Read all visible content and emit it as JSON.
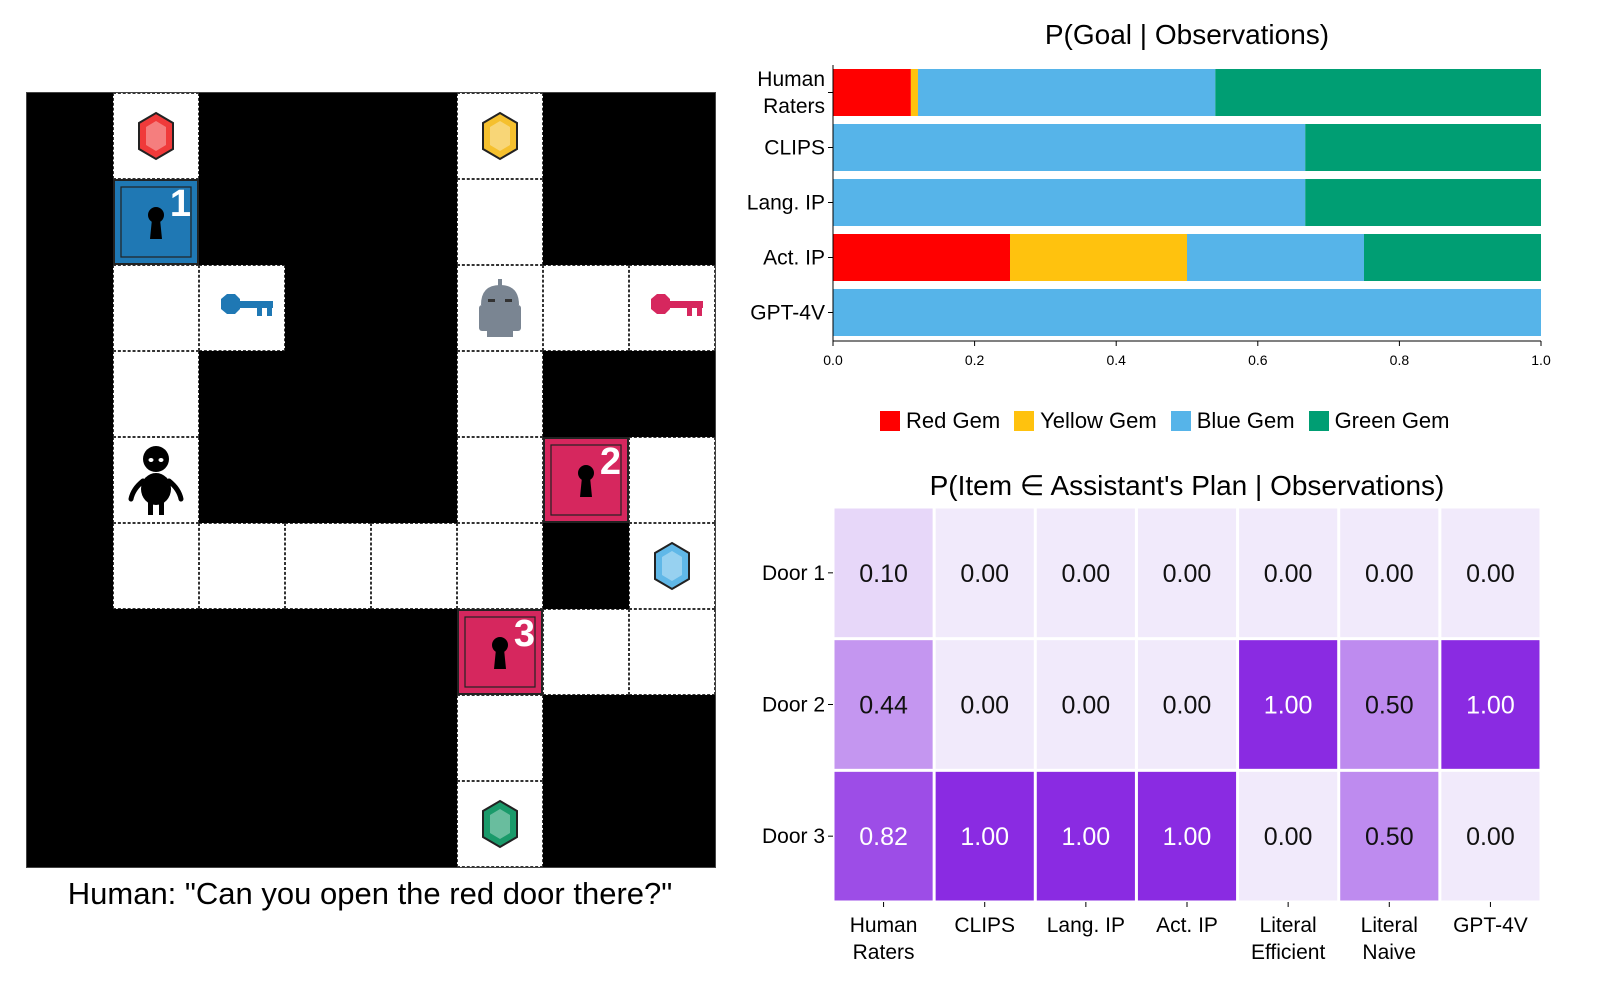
{
  "gridworld": {
    "caption": "Human: \"Can you open the red door there?\"",
    "door_labels": {
      "door1": "1",
      "door2": "2",
      "door3": "3"
    },
    "items": [
      {
        "name": "red-gem-icon",
        "label": "red gem"
      },
      {
        "name": "yellow-gem-icon",
        "label": "yellow gem"
      },
      {
        "name": "blue-gem-icon",
        "label": "blue gem"
      },
      {
        "name": "green-gem-icon",
        "label": "green gem"
      },
      {
        "name": "blue-key-icon",
        "label": "blue key"
      },
      {
        "name": "red-key-icon",
        "label": "red key"
      },
      {
        "name": "robot-icon",
        "label": "assistant"
      },
      {
        "name": "human-icon",
        "label": "human"
      }
    ],
    "colors": {
      "blue_door": "#1f78b4",
      "red_door": "#d6275e",
      "red_gem": "#f03a3a",
      "yellow_gem": "#f5c02e",
      "blue_gem": "#60b8e8",
      "green_gem": "#1a9a6a",
      "blue_key": "#1f78b4",
      "red_key": "#d6275e",
      "robot": "#7a8592"
    }
  },
  "chart_data": [
    {
      "type": "bar",
      "orientation": "horizontal",
      "stacked": true,
      "title": "P(Goal | Observations)",
      "categories": [
        "Human\nRaters",
        "CLIPS",
        "Lang. IP",
        "Act. IP",
        "GPT-4V"
      ],
      "series": [
        {
          "name": "Red Gem",
          "color": "#ff0000",
          "values": [
            0.11,
            0.0,
            0.0,
            0.25,
            0.0
          ]
        },
        {
          "name": "Yellow Gem",
          "color": "#ffc20e",
          "values": [
            0.01,
            0.0,
            0.0,
            0.25,
            0.0
          ]
        },
        {
          "name": "Blue Gem",
          "color": "#56b4e9",
          "values": [
            0.42,
            0.667,
            0.667,
            0.25,
            1.0
          ]
        },
        {
          "name": "Green Gem",
          "color": "#009e73",
          "values": [
            0.46,
            0.333,
            0.333,
            0.25,
            0.0
          ]
        }
      ],
      "xlim": [
        0.0,
        1.0
      ],
      "xticks": [
        "0.0",
        "0.2",
        "0.4",
        "0.6",
        "0.8",
        "1.0"
      ],
      "legend_position": "bottom"
    },
    {
      "type": "heatmap",
      "title": "P(Item ∈ Assistant's Plan | Observations)",
      "rows": [
        "Door 1",
        "Door 2",
        "Door 3"
      ],
      "columns": [
        "Human\nRaters",
        "CLIPS",
        "Lang. IP",
        "Act. IP",
        "Literal\nEfficient",
        "Literal\nNaive",
        "GPT-4V"
      ],
      "values": [
        [
          0.1,
          0.0,
          0.0,
          0.0,
          0.0,
          0.0,
          0.0
        ],
        [
          0.44,
          0.0,
          0.0,
          0.0,
          1.0,
          0.5,
          1.0
        ],
        [
          0.82,
          1.0,
          1.0,
          1.0,
          0.0,
          0.5,
          0.0
        ]
      ],
      "colorscale": [
        "#f1eafb",
        "#8a2be2"
      ]
    }
  ]
}
